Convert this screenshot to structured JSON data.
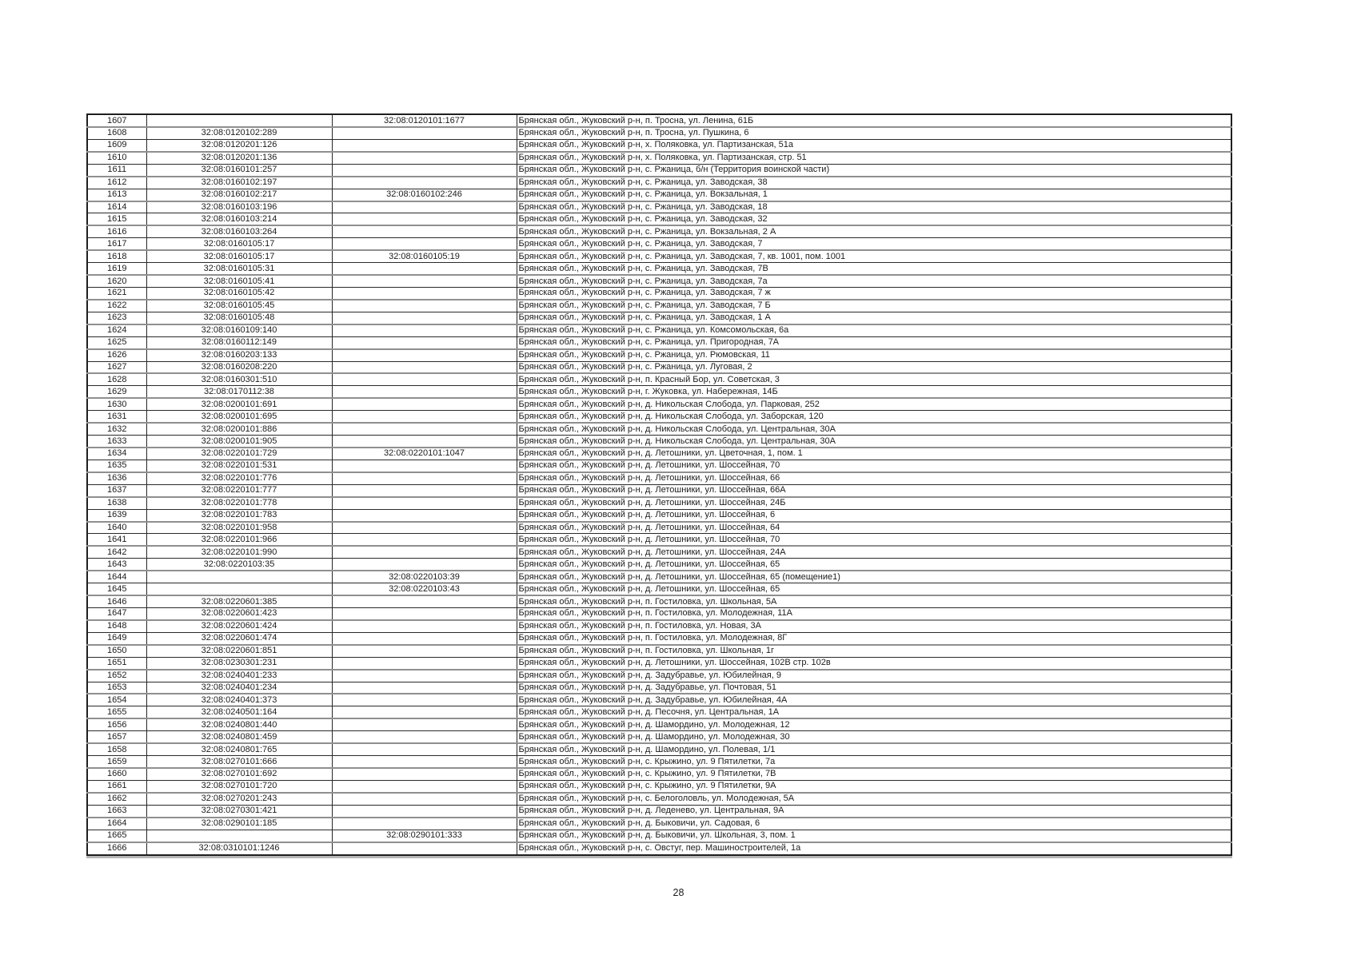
{
  "page": {
    "number": "28"
  },
  "table": {
    "columns": [
      "row_number",
      "cadastral_number_primary",
      "cadastral_number_secondary",
      "address"
    ],
    "rows": [
      [
        "1607",
        "",
        "32:08:0120101:1677",
        "Брянская обл., Жуковский р-н, п. Тросна, ул. Ленина, 61Б"
      ],
      [
        "1608",
        "32:08:0120102:289",
        "",
        "Брянская обл., Жуковский р-н, п. Тросна, ул. Пушкина, 6"
      ],
      [
        "1609",
        "32:08:0120201:126",
        "",
        "Брянская обл., Жуковский р-н, х. Поляковка, ул. Партизанская, 51а"
      ],
      [
        "1610",
        "32:08:0120201:136",
        "",
        "Брянская обл., Жуковский р-н, х. Поляковка, ул. Партизанская, стр. 51"
      ],
      [
        "1611",
        "32:08:0160101:257",
        "",
        "Брянская обл., Жуковский р-н, с. Ржаница, б/н (Территория воинской части)"
      ],
      [
        "1612",
        "32:08:0160102:197",
        "",
        "Брянская обл., Жуковский р-н, с. Ржаница, ул. Заводская, 38"
      ],
      [
        "1613",
        "32:08:0160102:217",
        "32:08:0160102:246",
        "Брянская обл., Жуковский р-н, с. Ржаница, ул. Вокзальная, 1"
      ],
      [
        "1614",
        "32:08:0160103:196",
        "",
        "Брянская обл., Жуковский р-н, с. Ржаница, ул. Заводская, 18"
      ],
      [
        "1615",
        "32:08:0160103:214",
        "",
        "Брянская обл., Жуковский р-н, с. Ржаница, ул. Заводская, 32"
      ],
      [
        "1616",
        "32:08:0160103:264",
        "",
        "Брянская обл., Жуковский р-н, с. Ржаница, ул. Вокзальная, 2 А"
      ],
      [
        "1617",
        "32:08:0160105:17",
        "",
        "Брянская обл., Жуковский р-н, с. Ржаница, ул. Заводская, 7"
      ],
      [
        "1618",
        "32:08:0160105:17",
        "32:08:0160105:19",
        "Брянская обл., Жуковский р-н, с. Ржаница, ул. Заводская, 7, кв. 1001, пом. 1001"
      ],
      [
        "1619",
        "32:08:0160105:31",
        "",
        "Брянская обл., Жуковский р-н, с. Ржаница, ул. Заводская, 7В"
      ],
      [
        "1620",
        "32:08:0160105:41",
        "",
        "Брянская обл., Жуковский р-н, с. Ржаница, ул. Заводская, 7а"
      ],
      [
        "1621",
        "32:08:0160105:42",
        "",
        "Брянская обл., Жуковский р-н, с. Ржаница, ул. Заводская, 7 ж"
      ],
      [
        "1622",
        "32:08:0160105:45",
        "",
        "Брянская обл., Жуковский р-н, с. Ржаница, ул. Заводская, 7 Б"
      ],
      [
        "1623",
        "32:08:0160105:48",
        "",
        "Брянская обл., Жуковский р-н, с. Ржаница, ул. Заводская, 1 А"
      ],
      [
        "1624",
        "32:08:0160109:140",
        "",
        "Брянская обл., Жуковский р-н, с. Ржаница, ул. Комсомольская, 6а"
      ],
      [
        "1625",
        "32:08:0160112:149",
        "",
        "Брянская обл., Жуковский р-н, с. Ржаница, ул. Пригородная, 7А"
      ],
      [
        "1626",
        "32:08:0160203:133",
        "",
        "Брянская обл., Жуковский р-н, с. Ржаница, ул. Рюмовская, 11"
      ],
      [
        "1627",
        "32:08:0160208:220",
        "",
        "Брянская обл., Жуковский р-н, с. Ржаница, ул. Луговая, 2"
      ],
      [
        "1628",
        "32:08:0160301:510",
        "",
        "Брянская обл., Жуковский р-н, п. Красный Бор, ул. Советская, 3"
      ],
      [
        "1629",
        "32:08:0170112:38",
        "",
        "Брянская обл., Жуковский р-н, г. Жуковка, ул. Набережная, 14Б"
      ],
      [
        "1630",
        "32:08:0200101:691",
        "",
        "Брянская обл., Жуковский р-н, д. Никольская Слобода, ул. Парковая, 252"
      ],
      [
        "1631",
        "32:08:0200101:695",
        "",
        "Брянская обл., Жуковский р-н, д. Никольская Слобода, ул. Заборская, 120"
      ],
      [
        "1632",
        "32:08:0200101:886",
        "",
        "Брянская обл., Жуковский р-н, д. Никольская Слобода, ул. Центральная, 30А"
      ],
      [
        "1633",
        "32:08:0200101:905",
        "",
        "Брянская обл., Жуковский р-н, д. Никольская Слобода, ул. Центральная, 30А"
      ],
      [
        "1634",
        "32:08:0220101:729",
        "32:08:0220101:1047",
        "Брянская обл., Жуковский р-н, д. Летошники, ул. Цветочная, 1, пом. 1"
      ],
      [
        "1635",
        "32:08:0220101:531",
        "",
        "Брянская обл., Жуковский р-н, д. Летошники, ул. Шоссейная, 70"
      ],
      [
        "1636",
        "32:08:0220101:776",
        "",
        "Брянская обл., Жуковский р-н, д. Летошники, ул. Шоссейная, 66"
      ],
      [
        "1637",
        "32:08:0220101:777",
        "",
        "Брянская обл., Жуковский р-н, д. Летошники, ул. Шоссейная, 66А"
      ],
      [
        "1638",
        "32:08:0220101:778",
        "",
        "Брянская обл., Жуковский р-н, д. Летошники, ул. Шоссейная, 24Б"
      ],
      [
        "1639",
        "32:08:0220101:783",
        "",
        "Брянская обл., Жуковский р-н, д. Летошники, ул. Шоссейная, 6"
      ],
      [
        "1640",
        "32:08:0220101:958",
        "",
        "Брянская обл., Жуковский р-н, д. Летошники, ул. Шоссейная, 64"
      ],
      [
        "1641",
        "32:08:0220101:966",
        "",
        "Брянская обл., Жуковский р-н, д. Летошники, ул. Шоссейная, 70"
      ],
      [
        "1642",
        "32:08:0220101:990",
        "",
        "Брянская обл., Жуковский р-н, д. Летошники, ул. Шоссейная, 24А"
      ],
      [
        "1643",
        "32:08:0220103:35",
        "",
        "Брянская обл., Жуковский р-н, д. Летошники, ул. Шоссейная, 65"
      ],
      [
        "1644",
        "",
        "32:08:0220103:39",
        "Брянская обл., Жуковский р-н, д. Летошники, ул. Шоссейная, 65 (помещение1)"
      ],
      [
        "1645",
        "",
        "32:08:0220103:43",
        "Брянская обл., Жуковский р-н, д. Летошники, ул. Шоссейная, 65"
      ],
      [
        "1646",
        "32:08:0220601:385",
        "",
        "Брянская обл., Жуковский р-н, п. Гостиловка, ул. Школьная, 5А"
      ],
      [
        "1647",
        "32:08:0220601:423",
        "",
        "Брянская обл., Жуковский р-н, п. Гостиловка, ул. Молодежная, 11А"
      ],
      [
        "1648",
        "32:08:0220601:424",
        "",
        "Брянская обл., Жуковский р-н, п. Гостиловка, ул. Новая, 3А"
      ],
      [
        "1649",
        "32:08:0220601:474",
        "",
        "Брянская обл., Жуковский р-н, п. Гостиловка, ул. Молодежная, 8Г"
      ],
      [
        "1650",
        "32:08:0220601:851",
        "",
        "Брянская обл., Жуковский р-н, п. Гостиловка, ул. Школьная, 1г"
      ],
      [
        "1651",
        "32:08:0230301:231",
        "",
        "Брянская обл., Жуковский р-н, д. Летошники, ул. Шоссейная, 102В стр. 102в"
      ],
      [
        "1652",
        "32:08:0240401:233",
        "",
        "Брянская обл., Жуковский р-н, д. Задубравье, ул. Юбилейная, 9"
      ],
      [
        "1653",
        "32:08:0240401:234",
        "",
        "Брянская обл., Жуковский р-н, д. Задубравье, ул. Почтовая, 51"
      ],
      [
        "1654",
        "32:08:0240401:373",
        "",
        "Брянская обл., Жуковский р-н, д. Задубравье, ул. Юбилейная, 4А"
      ],
      [
        "1655",
        "32:08:0240501:164",
        "",
        "Брянская обл., Жуковский р-н, д. Песочня, ул. Центральная, 1А"
      ],
      [
        "1656",
        "32:08:0240801:440",
        "",
        "Брянская обл., Жуковский р-н, д. Шамордино, ул. Молодежная, 12"
      ],
      [
        "1657",
        "32:08:0240801:459",
        "",
        "Брянская обл., Жуковский р-н, д. Шамордино, ул. Молодежная, 30"
      ],
      [
        "1658",
        "32:08:0240801:765",
        "",
        "Брянская обл., Жуковский р-н, д. Шамордино, ул. Полевая, 1/1"
      ],
      [
        "1659",
        "32:08:0270101:666",
        "",
        "Брянская обл., Жуковский р-н, с. Крыжино, ул. 9 Пятилетки, 7а"
      ],
      [
        "1660",
        "32:08:0270101:692",
        "",
        "Брянская обл., Жуковский р-н, с. Крыжино, ул. 9 Пятилетки, 7В"
      ],
      [
        "1661",
        "32:08:0270101:720",
        "",
        "Брянская обл., Жуковский р-н, с. Крыжино, ул. 9 Пятилетки, 9А"
      ],
      [
        "1662",
        "32:08:0270201:243",
        "",
        "Брянская обл., Жуковский р-н, с. Белоголовль, ул. Молодежная, 5А"
      ],
      [
        "1663",
        "32:08:0270301:421",
        "",
        "Брянская обл., Жуковский р-н, д. Леденево, ул. Центральная, 9А"
      ],
      [
        "1664",
        "32:08:0290101:185",
        "",
        "Брянская обл., Жуковский р-н, д. Быковичи, ул. Садовая, 6"
      ],
      [
        "1665",
        "",
        "32:08:0290101:333",
        "Брянская обл., Жуковский р-н, д. Быковичи, ул. Школьная, 3, пом. 1"
      ],
      [
        "1666",
        "32:08:0310101:1246",
        "",
        "Брянская обл., Жуковский р-н, с. Овстуг, пер. Машиностроителей, 1а"
      ]
    ]
  }
}
